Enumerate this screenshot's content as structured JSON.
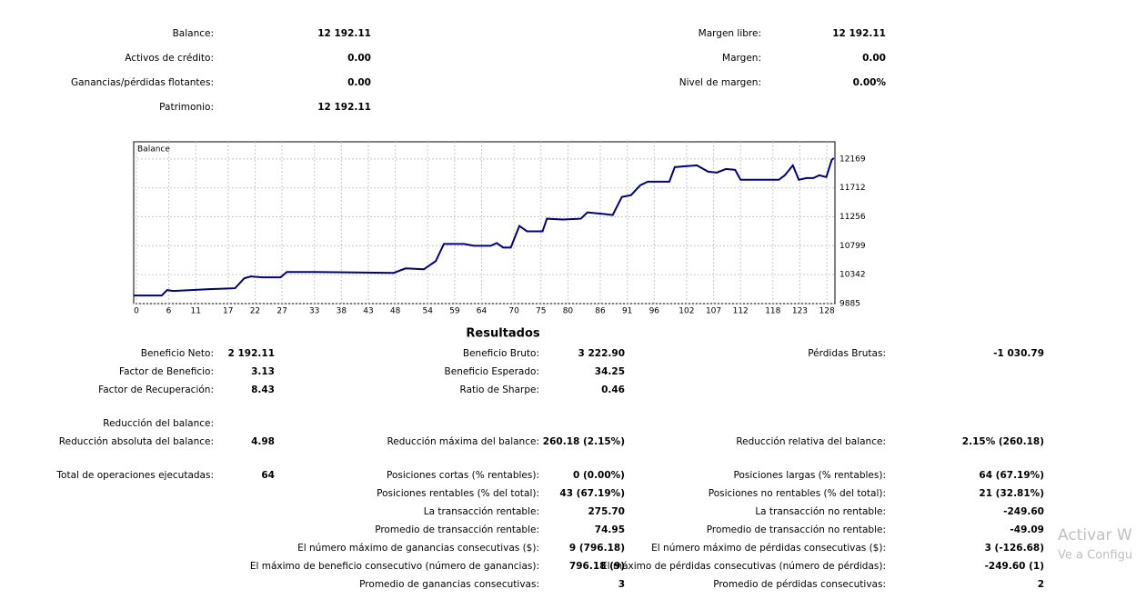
{
  "summary": {
    "left": [
      {
        "label": "Balance:",
        "value": "12 192.11"
      },
      {
        "label": "Activos de crédito:",
        "value": "0.00"
      },
      {
        "label": "Ganancias/pérdidas flotantes:",
        "value": "0.00"
      },
      {
        "label": "Patrimonio:",
        "value": "12 192.11"
      }
    ],
    "right": [
      {
        "label": "Margen libre:",
        "value": "12 192.11"
      },
      {
        "label": "Margen:",
        "value": "0.00"
      },
      {
        "label": "Nivel de margen:",
        "value": "0.00%"
      }
    ]
  },
  "chart_data": {
    "type": "line",
    "title": "Balance",
    "x": [
      -0.5,
      4.7,
      5.7,
      6.8,
      13.5,
      18.3,
      20,
      21.2,
      23.4,
      26.7,
      27.9,
      33,
      47.7,
      49.9,
      53.3,
      55.5,
      57,
      60.7,
      62.6,
      65.7,
      66.8,
      68,
      69.4,
      71,
      72.4,
      75.3,
      76.1,
      79,
      82.4,
      83.6,
      87,
      88.3,
      90,
      91.7,
      93.4,
      94.8,
      98.8,
      99.8,
      103.9,
      106,
      107.6,
      109.3,
      111,
      112,
      119.1,
      120.2,
      121.7,
      122.8,
      124.2,
      125.5,
      126.6,
      127.9,
      128.9,
      129.3
    ],
    "series": [
      {
        "name": "Balance",
        "color": "#000080",
        "values": [
          10013,
          10013,
          10099,
          10085,
          10113,
          10128,
          10285,
          10313,
          10299,
          10299,
          10384,
          10384,
          10370,
          10441,
          10427,
          10556,
          10827,
          10827,
          10798,
          10798,
          10841,
          10770,
          10770,
          11112,
          11027,
          11027,
          11226,
          11212,
          11226,
          11326,
          11297,
          11283,
          11569,
          11597,
          11754,
          11811,
          11811,
          12040,
          12068,
          11968,
          11954,
          12011,
          11997,
          11840,
          11840,
          11911,
          12068,
          11840,
          11868,
          11868,
          11911,
          11883,
          12154,
          12183
        ]
      }
    ],
    "xlim": [
      -0.5,
      129.5
    ],
    "ylim": [
      9885,
      12440
    ],
    "xticks": [
      0,
      6,
      11,
      17,
      22,
      27,
      33,
      38,
      43,
      48,
      54,
      59,
      64,
      70,
      75,
      80,
      86,
      91,
      96,
      102,
      107,
      112,
      118,
      123,
      128
    ],
    "yticks": [
      9885,
      10342,
      10799,
      11256,
      11712,
      12169
    ],
    "grid": true
  },
  "results": {
    "title": "Resultados",
    "rows": [
      [
        {
          "label": "Beneficio Neto:",
          "value": "2 192.11"
        },
        {
          "label": "Beneficio Bruto:",
          "value": "3 222.90"
        },
        {
          "label": "Pérdidas Brutas:",
          "value": "-1 030.79"
        }
      ],
      [
        {
          "label": "Factor de Beneficio:",
          "value": "3.13"
        },
        {
          "label": "Beneficio Esperado:",
          "value": "34.25"
        },
        null
      ],
      [
        {
          "label": "Factor de Recuperación:",
          "value": "8.43"
        },
        {
          "label": "Ratio de Sharpe:",
          "value": "0.46"
        },
        null
      ],
      [
        {
          "label": "Reducción del balance:"
        },
        null,
        null
      ],
      [
        {
          "label": "Reducción absoluta del balance:",
          "value": "4.98"
        },
        {
          "label": "Reducción máxima del balance:",
          "value": "260.18 (2.15%)"
        },
        {
          "label": "Reducción relativa del balance:",
          "value": "2.15% (260.18)"
        }
      ],
      [
        {
          "label": "Total de operaciones ejecutadas:",
          "value": "64"
        },
        {
          "label": "Posiciones cortas (% rentables):",
          "value": "0 (0.00%)"
        },
        {
          "label": "Posiciones largas (% rentables):",
          "value": "64 (67.19%)"
        }
      ],
      [
        null,
        {
          "label": "Posiciones rentables (% del total):",
          "value": "43 (67.19%)"
        },
        {
          "label": "Posiciones no rentables (% del total):",
          "value": "21 (32.81%)"
        }
      ],
      [
        null,
        {
          "label": "La transacción rentable:",
          "value": "275.70"
        },
        {
          "label": "La transacción no rentable:",
          "value": "-249.60"
        }
      ],
      [
        null,
        {
          "label": "Promedio de transacción rentable:",
          "value": "74.95"
        },
        {
          "label": "Promedio de transacción no rentable:",
          "value": "-49.09"
        }
      ],
      [
        null,
        {
          "label": "El número máximo de ganancias consecutivas ($):",
          "value": "9 (796.18)"
        },
        {
          "label": "El número máximo de pérdidas consecutivas ($):",
          "value": "3 (-126.68)"
        }
      ],
      [
        null,
        {
          "label": "El máximo de beneficio consecutivo (número de ganancias):",
          "value": "796.18 (9)"
        },
        {
          "label": "El máximo de pérdidas consecutivas (número de pérdidas):",
          "value": "-249.60 (1)"
        }
      ],
      [
        null,
        {
          "label": "Promedio de ganancias consecutivas:",
          "value": "3"
        },
        {
          "label": "Promedio de pérdidas consecutivas:",
          "value": "2"
        }
      ]
    ]
  },
  "watermark": {
    "title": "Activar W",
    "subtitle": "Ve a Configu"
  }
}
